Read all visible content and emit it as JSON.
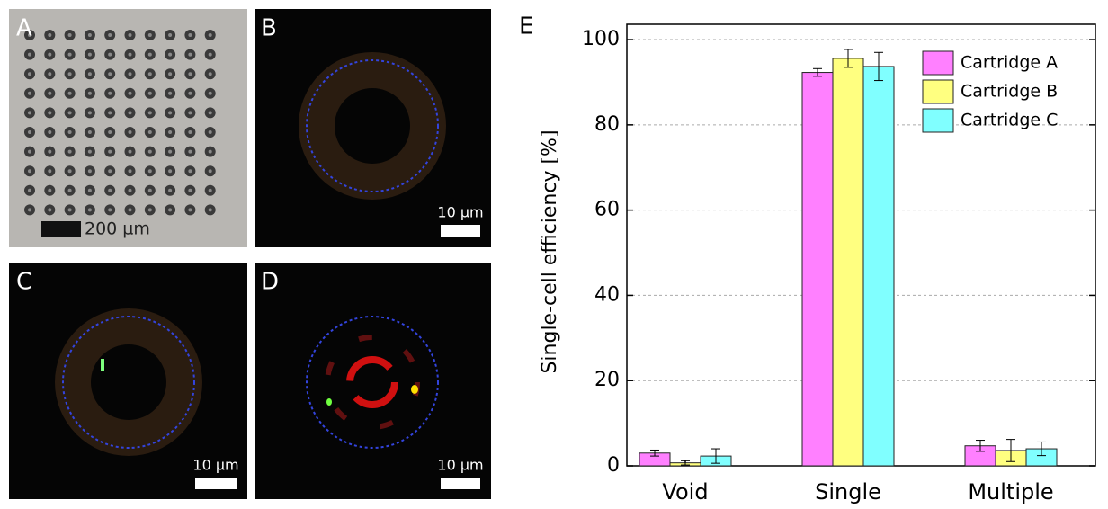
{
  "panels": [
    {
      "label": "A",
      "scale_bar": "200 µm"
    },
    {
      "label": "B",
      "scale_bar": "10 µm"
    },
    {
      "label": "C",
      "scale_bar": "10 µm"
    },
    {
      "label": "D",
      "scale_bar": "10 µm"
    }
  ],
  "chart_data": {
    "type": "bar",
    "panel_label": "E",
    "y_label": "Single-cell efficiency [%]",
    "categories": [
      "Void",
      "Single",
      "Multiple"
    ],
    "series": [
      {
        "name": "Cartridge A",
        "color": "#ff80ff",
        "values": [
          3.0,
          92.3,
          4.7
        ],
        "errors": [
          0.7,
          0.9,
          1.3
        ]
      },
      {
        "name": "Cartridge B",
        "color": "#ffff80",
        "values": [
          0.7,
          95.6,
          3.6
        ],
        "errors": [
          0.5,
          2.1,
          2.6
        ]
      },
      {
        "name": "Cartridge C",
        "color": "#80ffff",
        "values": [
          2.3,
          93.7,
          4.0
        ],
        "errors": [
          1.7,
          3.3,
          1.6
        ]
      }
    ],
    "ylim": [
      0,
      103.6
    ],
    "yticks": [
      0,
      20,
      40,
      60,
      80,
      100
    ],
    "grid": true,
    "legend": "top-right"
  }
}
